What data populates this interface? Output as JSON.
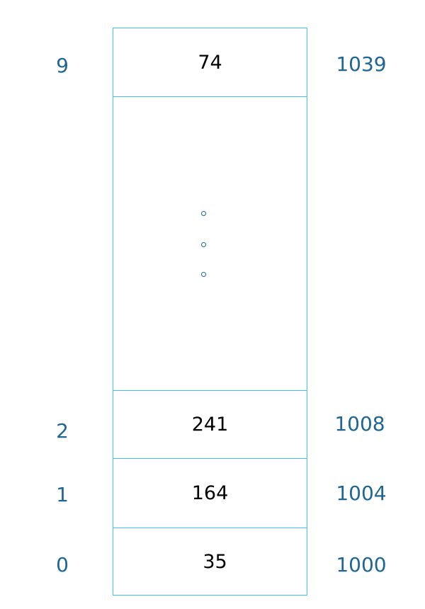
{
  "colors": {
    "border": "#3fc3ef",
    "label": "#1f6695",
    "value": "#000000"
  },
  "rows": [
    {
      "index": "9",
      "value": "74",
      "address": "1039"
    },
    {
      "index": "2",
      "value": "241",
      "address": "1008"
    },
    {
      "index": "1",
      "value": "164",
      "address": "1004"
    },
    {
      "index": "0",
      "value": "35",
      "address": "1000"
    }
  ],
  "ellipsis_icon": "vertical-dots"
}
